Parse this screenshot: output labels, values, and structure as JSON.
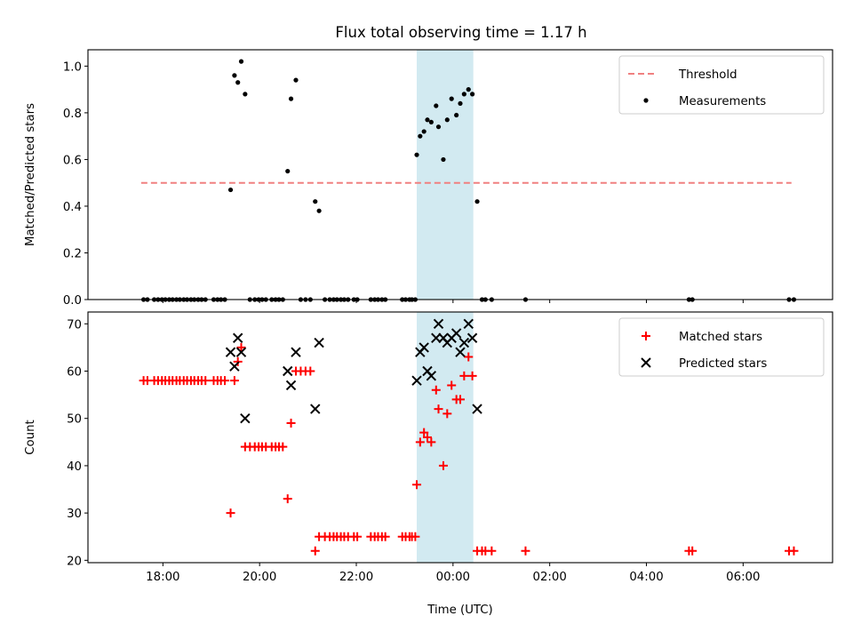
{
  "figure": {
    "title": "Flux total observing time = 1.17 h"
  },
  "chart_data": [
    {
      "type": "scatter",
      "panel": "top",
      "ylabel": "Matched/Predicted stars",
      "xlabel": "",
      "x_unit": "hours relative to 00:00 UTC",
      "xlim": [
        -7.55,
        7.85
      ],
      "ylim": [
        0,
        1.07
      ],
      "yticks": [
        "0.0",
        "0.2",
        "0.4",
        "0.6",
        "0.8",
        "1.0"
      ],
      "ytick_values": [
        0,
        0.2,
        0.4,
        0.6,
        0.8,
        1.0
      ],
      "highlight_span": [
        -0.75,
        0.42
      ],
      "highlight_color": "#add8e6",
      "legend_position": "top-right",
      "threshold": {
        "name": "Threshold",
        "value": 0.5,
        "x_range": [
          -6.45,
          7.0
        ],
        "color": "#f08080"
      },
      "series": [
        {
          "name": "Measurements",
          "color": "#000000",
          "points": [
            [
              -6.4,
              0
            ],
            [
              -6.32,
              0
            ],
            [
              -6.18,
              0
            ],
            [
              -6.1,
              0
            ],
            [
              -6.02,
              0
            ],
            [
              -5.95,
              0
            ],
            [
              -5.87,
              0
            ],
            [
              -5.8,
              0
            ],
            [
              -5.72,
              0
            ],
            [
              -5.65,
              0
            ],
            [
              -5.57,
              0
            ],
            [
              -5.5,
              0
            ],
            [
              -5.42,
              0
            ],
            [
              -5.35,
              0
            ],
            [
              -5.27,
              0
            ],
            [
              -5.2,
              0
            ],
            [
              -5.12,
              0
            ],
            [
              -4.95,
              0
            ],
            [
              -4.87,
              0
            ],
            [
              -4.8,
              0
            ],
            [
              -4.72,
              0
            ],
            [
              -4.6,
              0.47
            ],
            [
              -4.52,
              0.96
            ],
            [
              -4.45,
              0.93
            ],
            [
              -4.38,
              1.02
            ],
            [
              -4.3,
              0.88
            ],
            [
              -4.2,
              0
            ],
            [
              -4.1,
              0
            ],
            [
              -4.02,
              0
            ],
            [
              -3.95,
              0
            ],
            [
              -3.87,
              0
            ],
            [
              -3.75,
              0
            ],
            [
              -3.67,
              0
            ],
            [
              -3.6,
              0
            ],
            [
              -3.52,
              0
            ],
            [
              -3.42,
              0.55
            ],
            [
              -3.35,
              0.86
            ],
            [
              -3.25,
              0.94
            ],
            [
              -3.15,
              0
            ],
            [
              -3.05,
              0
            ],
            [
              -2.95,
              0
            ],
            [
              -2.85,
              0.42
            ],
            [
              -2.77,
              0.38
            ],
            [
              -2.65,
              0
            ],
            [
              -2.55,
              0
            ],
            [
              -2.47,
              0
            ],
            [
              -2.4,
              0
            ],
            [
              -2.32,
              0
            ],
            [
              -2.25,
              0
            ],
            [
              -2.17,
              0
            ],
            [
              -2.05,
              0
            ],
            [
              -1.98,
              0
            ],
            [
              -1.7,
              0
            ],
            [
              -1.62,
              0
            ],
            [
              -1.55,
              0
            ],
            [
              -1.47,
              0
            ],
            [
              -1.4,
              0
            ],
            [
              -1.05,
              0
            ],
            [
              -0.98,
              0
            ],
            [
              -0.9,
              0
            ],
            [
              -0.85,
              0
            ],
            [
              -0.78,
              0
            ],
            [
              -0.75,
              0.62
            ],
            [
              -0.68,
              0.7
            ],
            [
              -0.6,
              0.72
            ],
            [
              -0.53,
              0.77
            ],
            [
              -0.45,
              0.76
            ],
            [
              -0.35,
              0.83
            ],
            [
              -0.3,
              0.74
            ],
            [
              -0.2,
              0.6
            ],
            [
              -0.12,
              0.77
            ],
            [
              -0.03,
              0.86
            ],
            [
              0.07,
              0.79
            ],
            [
              0.15,
              0.84
            ],
            [
              0.23,
              0.88
            ],
            [
              0.32,
              0.9
            ],
            [
              0.4,
              0.88
            ],
            [
              0.5,
              0.42
            ],
            [
              0.6,
              0
            ],
            [
              0.67,
              0
            ],
            [
              0.8,
              0
            ],
            [
              1.5,
              0
            ],
            [
              4.88,
              0
            ],
            [
              4.95,
              0
            ],
            [
              6.95,
              0
            ],
            [
              7.05,
              0
            ]
          ]
        }
      ],
      "xtick_values": [
        -6,
        -4,
        -2,
        0,
        2,
        4,
        6
      ]
    },
    {
      "type": "scatter",
      "panel": "bottom",
      "ylabel": "Count",
      "xlabel": "Time (UTC)",
      "x_unit": "hours relative to 00:00 UTC",
      "xlim": [
        -7.55,
        7.85
      ],
      "ylim": [
        19.5,
        72.5
      ],
      "yticks": [
        "20",
        "30",
        "40",
        "50",
        "60",
        "70"
      ],
      "ytick_values": [
        20,
        30,
        40,
        50,
        60,
        70
      ],
      "xticks": [
        "18:00",
        "20:00",
        "22:00",
        "00:00",
        "02:00",
        "04:00",
        "06:00"
      ],
      "xtick_values": [
        -6,
        -4,
        -2,
        0,
        2,
        4,
        6
      ],
      "highlight_span": [
        -0.75,
        0.42
      ],
      "highlight_color": "#add8e6",
      "legend_position": "top-right",
      "series": [
        {
          "name": "Matched stars",
          "marker": "plus",
          "color": "#ff0000",
          "points": [
            [
              -6.4,
              58
            ],
            [
              -6.32,
              58
            ],
            [
              -6.18,
              58
            ],
            [
              -6.1,
              58
            ],
            [
              -6.02,
              58
            ],
            [
              -5.95,
              58
            ],
            [
              -5.87,
              58
            ],
            [
              -5.8,
              58
            ],
            [
              -5.72,
              58
            ],
            [
              -5.65,
              58
            ],
            [
              -5.57,
              58
            ],
            [
              -5.5,
              58
            ],
            [
              -5.42,
              58
            ],
            [
              -5.35,
              58
            ],
            [
              -5.27,
              58
            ],
            [
              -5.2,
              58
            ],
            [
              -5.12,
              58
            ],
            [
              -4.95,
              58
            ],
            [
              -4.87,
              58
            ],
            [
              -4.8,
              58
            ],
            [
              -4.72,
              58
            ],
            [
              -4.6,
              30
            ],
            [
              -4.52,
              58
            ],
            [
              -4.45,
              62
            ],
            [
              -4.38,
              65
            ],
            [
              -4.3,
              44
            ],
            [
              -4.2,
              44
            ],
            [
              -4.1,
              44
            ],
            [
              -4.02,
              44
            ],
            [
              -3.95,
              44
            ],
            [
              -3.87,
              44
            ],
            [
              -3.75,
              44
            ],
            [
              -3.67,
              44
            ],
            [
              -3.6,
              44
            ],
            [
              -3.52,
              44
            ],
            [
              -3.42,
              33
            ],
            [
              -3.35,
              49
            ],
            [
              -3.25,
              60
            ],
            [
              -3.15,
              60
            ],
            [
              -3.05,
              60
            ],
            [
              -2.95,
              60
            ],
            [
              -2.85,
              22
            ],
            [
              -2.77,
              25
            ],
            [
              -2.65,
              25
            ],
            [
              -2.55,
              25
            ],
            [
              -2.47,
              25
            ],
            [
              -2.4,
              25
            ],
            [
              -2.32,
              25
            ],
            [
              -2.25,
              25
            ],
            [
              -2.17,
              25
            ],
            [
              -2.05,
              25
            ],
            [
              -1.98,
              25
            ],
            [
              -1.7,
              25
            ],
            [
              -1.62,
              25
            ],
            [
              -1.55,
              25
            ],
            [
              -1.47,
              25
            ],
            [
              -1.4,
              25
            ],
            [
              -1.05,
              25
            ],
            [
              -0.98,
              25
            ],
            [
              -0.9,
              25
            ],
            [
              -0.85,
              25
            ],
            [
              -0.78,
              25
            ],
            [
              -0.75,
              36
            ],
            [
              -0.68,
              45
            ],
            [
              -0.6,
              47
            ],
            [
              -0.53,
              46
            ],
            [
              -0.45,
              45
            ],
            [
              -0.35,
              56
            ],
            [
              -0.3,
              52
            ],
            [
              -0.2,
              40
            ],
            [
              -0.12,
              51
            ],
            [
              -0.03,
              57
            ],
            [
              0.07,
              54
            ],
            [
              0.15,
              54
            ],
            [
              0.23,
              59
            ],
            [
              0.32,
              63
            ],
            [
              0.4,
              59
            ],
            [
              0.5,
              22
            ],
            [
              0.6,
              22
            ],
            [
              0.67,
              22
            ],
            [
              0.8,
              22
            ],
            [
              1.5,
              22
            ],
            [
              4.88,
              22
            ],
            [
              4.95,
              22
            ],
            [
              6.95,
              22
            ],
            [
              7.05,
              22
            ]
          ]
        },
        {
          "name": "Predicted stars",
          "marker": "x",
          "color": "#000000",
          "points": [
            [
              -4.6,
              64
            ],
            [
              -4.52,
              61
            ],
            [
              -4.45,
              67
            ],
            [
              -4.38,
              64
            ],
            [
              -4.3,
              50
            ],
            [
              -3.42,
              60
            ],
            [
              -3.35,
              57
            ],
            [
              -3.25,
              64
            ],
            [
              -2.85,
              52
            ],
            [
              -2.77,
              66
            ],
            [
              -0.75,
              58
            ],
            [
              -0.68,
              64
            ],
            [
              -0.6,
              65
            ],
            [
              -0.53,
              60
            ],
            [
              -0.45,
              59
            ],
            [
              -0.35,
              67
            ],
            [
              -0.3,
              70
            ],
            [
              -0.2,
              67
            ],
            [
              -0.12,
              66
            ],
            [
              -0.03,
              67
            ],
            [
              0.07,
              68
            ],
            [
              0.15,
              64
            ],
            [
              0.23,
              66
            ],
            [
              0.32,
              70
            ],
            [
              0.4,
              67
            ],
            [
              0.5,
              52
            ]
          ]
        }
      ]
    }
  ]
}
